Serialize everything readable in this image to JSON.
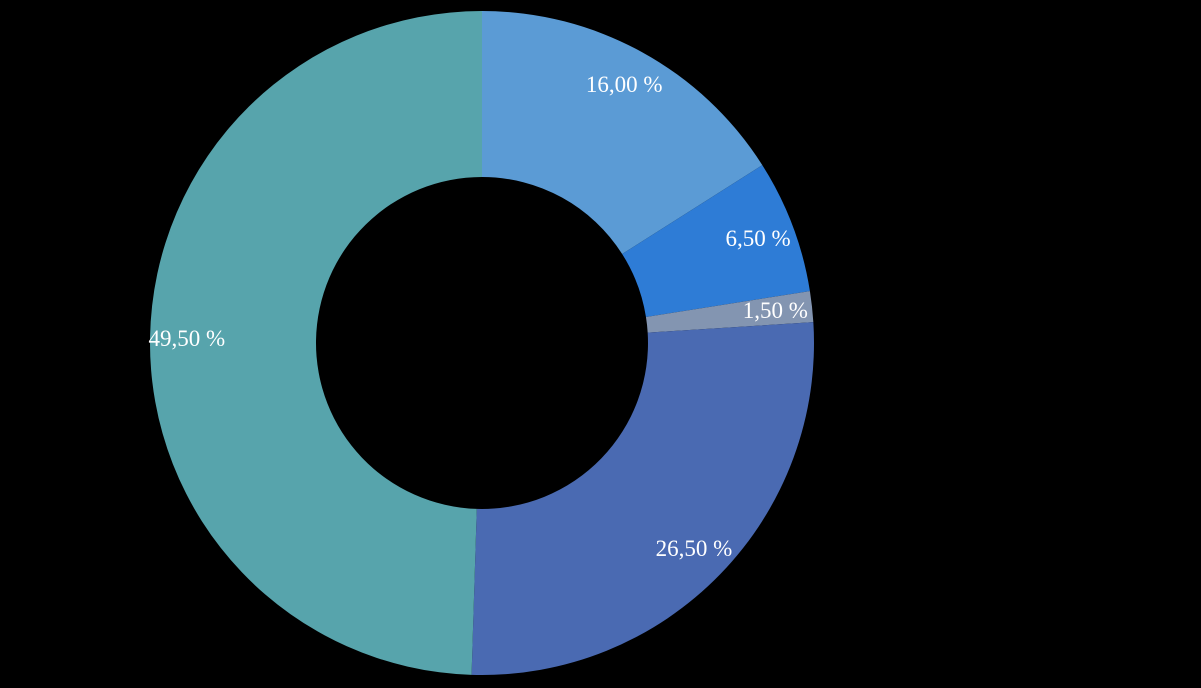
{
  "background_color": "#000000",
  "chart_data": {
    "type": "pie",
    "subtype": "doughnut",
    "title": "",
    "legend_position": "none",
    "direction": "clockwise",
    "start_angle_deg": 0,
    "donut_hole_ratio": 0.5,
    "values": [
      16.0,
      6.5,
      1.5,
      26.5,
      49.5
    ],
    "labels": [
      "16,00 %",
      "6,50 %",
      "1,50 %",
      "26,50 %",
      "49,50 %"
    ],
    "colors": [
      "#5B9BD5",
      "#2E7CD6",
      "#8395B1",
      "#4A6AB2",
      "#57A4AC"
    ],
    "label_color": "#FFFFFF",
    "value_format": "percent-comma-decimal"
  }
}
